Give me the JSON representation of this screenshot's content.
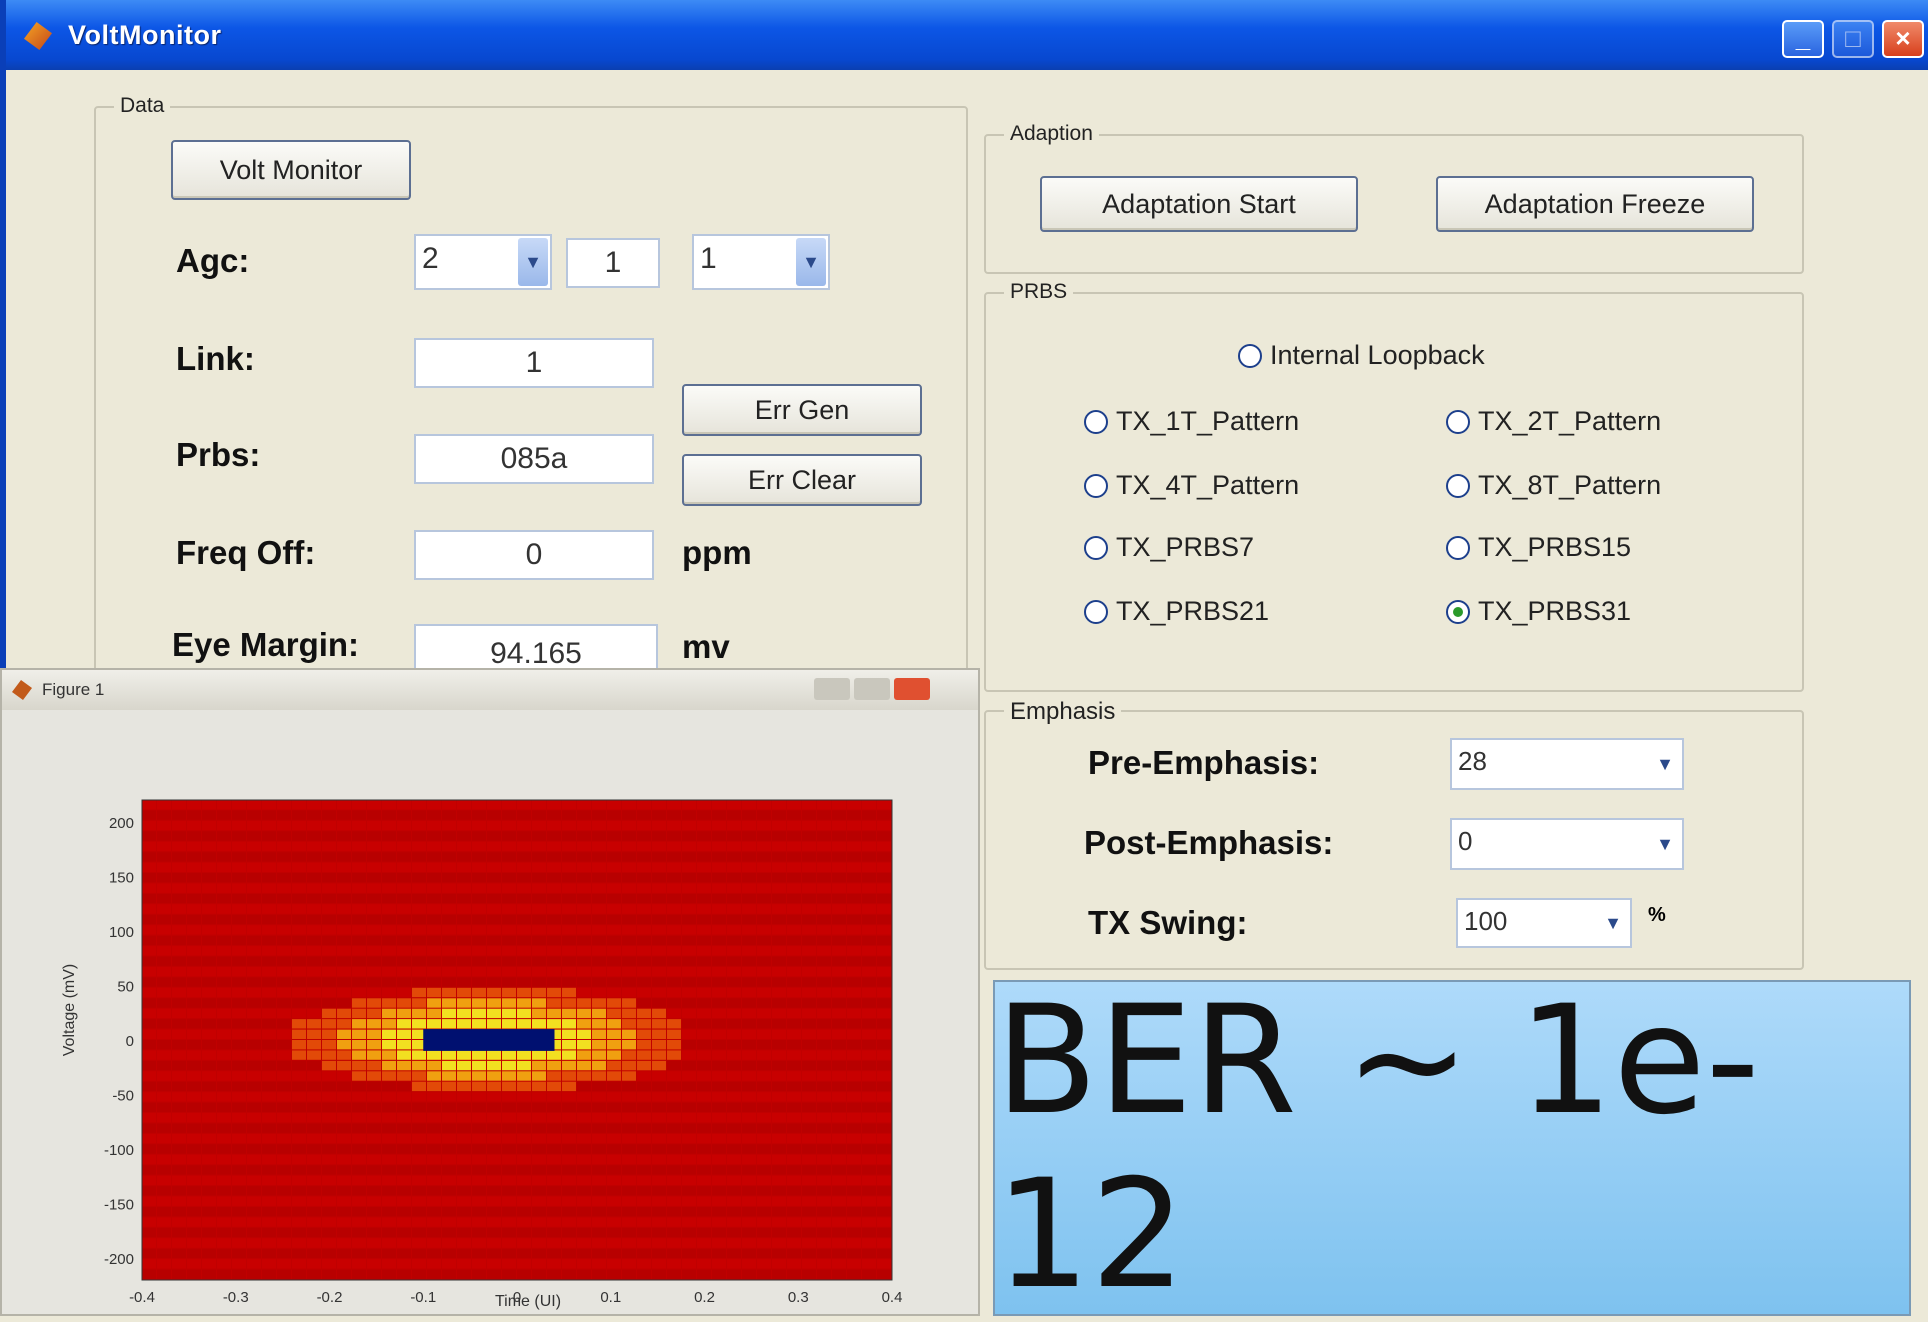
{
  "window": {
    "title": "VoltMonitor"
  },
  "data_group": {
    "label": "Data",
    "volt_monitor_button": "Volt Monitor",
    "agc": {
      "label": "Agc:",
      "combo1": "2",
      "field": "1",
      "combo2": "1"
    },
    "link": {
      "label": "Link:",
      "value": "1"
    },
    "prbs": {
      "label": "Prbs:",
      "value": "085a"
    },
    "freq_off": {
      "label": "Freq Off:",
      "value": "0",
      "unit": "ppm"
    },
    "eye_margin": {
      "label": "Eye Margin:",
      "value": "94.165",
      "unit": "mv"
    },
    "err_gen_button": "Err Gen",
    "err_clear_button": "Err Clear"
  },
  "adaption_group": {
    "label": "Adaption",
    "start_button": "Adaptation Start",
    "freeze_button": "Adaptation Freeze"
  },
  "prbs_group": {
    "label": "PRBS",
    "internal_loopback": "Internal Loopback",
    "options": [
      {
        "label": "TX_1T_Pattern",
        "selected": false
      },
      {
        "label": "TX_2T_Pattern",
        "selected": false
      },
      {
        "label": "TX_4T_Pattern",
        "selected": false
      },
      {
        "label": "TX_8T_Pattern",
        "selected": false
      },
      {
        "label": "TX_PRBS7",
        "selected": false
      },
      {
        "label": "TX_PRBS15",
        "selected": false
      },
      {
        "label": "TX_PRBS21",
        "selected": false
      },
      {
        "label": "TX_PRBS31",
        "selected": true
      }
    ]
  },
  "emphasis_group": {
    "label": "Emphasis",
    "pre": {
      "label": "Pre-Emphasis:",
      "value": "28"
    },
    "post": {
      "label": "Post-Emphasis:",
      "value": "0"
    },
    "swing": {
      "label": "TX Swing:",
      "value": "100",
      "unit": "%"
    }
  },
  "figure": {
    "title": "Figure 1"
  },
  "chart_data": {
    "type": "heatmap",
    "xlabel": "Time (UI)",
    "ylabel": "Voltage (mV)",
    "xlim": [
      -0.4,
      0.4
    ],
    "ylim": [
      -220,
      220
    ],
    "x_ticks": [
      -0.4,
      -0.3,
      -0.2,
      -0.1,
      0,
      0.1,
      0.2,
      0.3,
      0.4
    ],
    "y_ticks": [
      200,
      150,
      100,
      50,
      0,
      -50,
      -100,
      -150,
      -200
    ],
    "x_tick_labels": [
      "-0.4",
      "-0.3",
      "-0.2",
      "-0.1",
      "0",
      "0.1",
      "0.2",
      "0.3",
      "0.4"
    ],
    "y_tick_labels": [
      "200",
      "150",
      "100",
      "50",
      "0",
      "-50",
      "-100",
      "-150",
      "-200"
    ],
    "eye_opening": {
      "x_range": [
        -0.1,
        0.04
      ],
      "y_range": [
        -10,
        10
      ]
    },
    "colors": {
      "background": "#c00000",
      "eye": "#001070",
      "edge": "#f0d020"
    }
  },
  "overlay": {
    "text": "BER ~ 1e-12"
  }
}
